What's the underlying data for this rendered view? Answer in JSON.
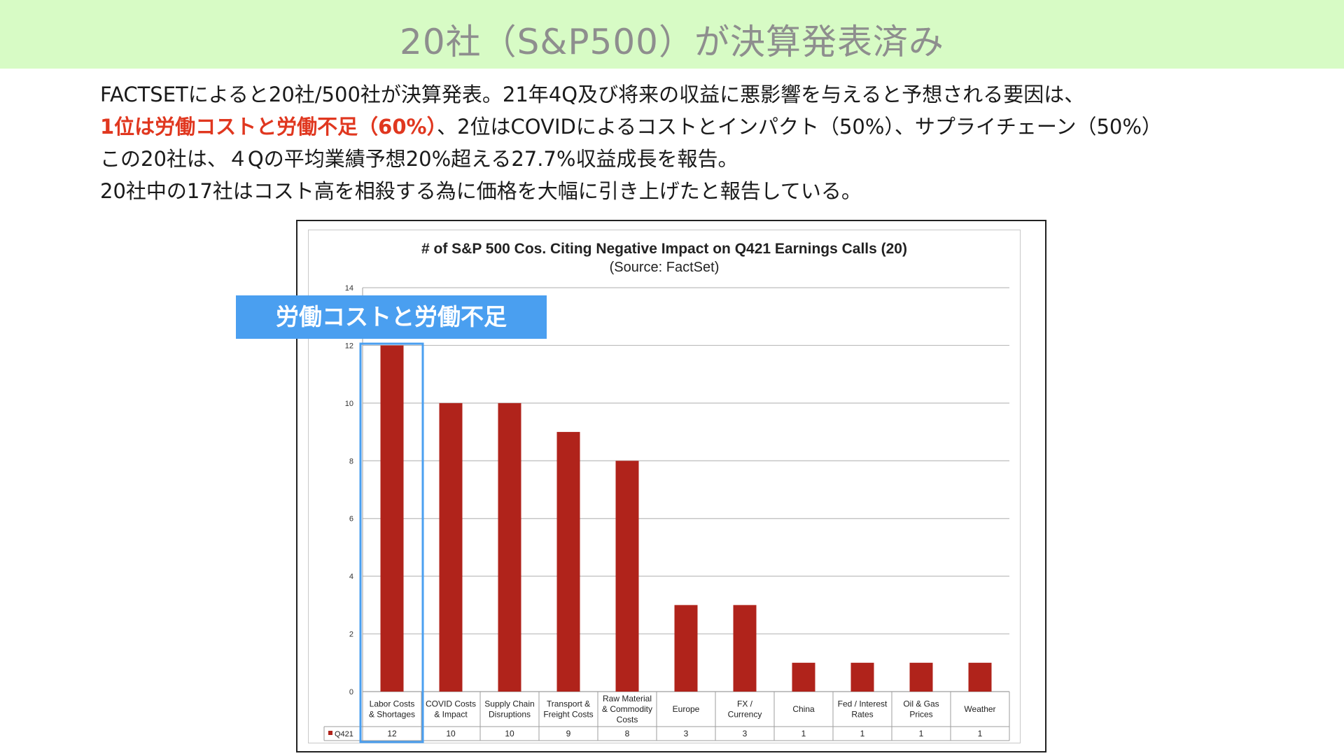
{
  "slide": {
    "title": "20社（S&P500）が決算発表済み"
  },
  "body": {
    "line1": "FACTSETによると20社/500社が決算発表。21年4Q及び将来の収益に悪影響を与えると予想される要因は、",
    "line2_highlight": "1位は労働コストと労働不足（60%）",
    "line2_rest": "、2位はCOVIDによるコストとインパクト（50%）、サプライチェーン（50%）",
    "line3": "この20社は、４Qの平均業績予想20%超える27.7%収益成長を報告。",
    "line4": "20社中の17社はコスト高を相殺する為に価格を大幅に引き上げたと報告している。"
  },
  "callout": {
    "label": "労働コストと労働不足",
    "target_category_index": 0
  },
  "colors": {
    "title_bar_bg": "#d7fbc5",
    "highlight_text": "#e0371f",
    "bar": "#b0231b",
    "callout": "#4a9ff0"
  },
  "chart_data": {
    "type": "bar",
    "title": "# of S&P 500 Cos. Citing Negative Impact on Q421 Earnings Calls (20)",
    "subtitle": "(Source: FactSet)",
    "categories": [
      [
        "Labor Costs",
        "& Shortages"
      ],
      [
        "COVID Costs",
        "& Impact"
      ],
      [
        "Supply Chain",
        "Disruptions"
      ],
      [
        "Transport &",
        "Freight Costs"
      ],
      [
        "Raw Material",
        "& Commodity",
        "Costs"
      ],
      [
        "Europe"
      ],
      [
        "FX /",
        "Currency"
      ],
      [
        "China"
      ],
      [
        "Fed / Interest",
        "Rates"
      ],
      [
        "Oil & Gas",
        "Prices"
      ],
      [
        "Weather"
      ]
    ],
    "series": [
      {
        "name": "Q421",
        "values": [
          12,
          10,
          10,
          9,
          8,
          3,
          3,
          1,
          1,
          1,
          1
        ]
      }
    ],
    "ylim": [
      0,
      14
    ],
    "yticks": [
      0,
      2,
      4,
      6,
      8,
      10,
      12,
      14
    ],
    "grid": true,
    "data_table": true
  }
}
